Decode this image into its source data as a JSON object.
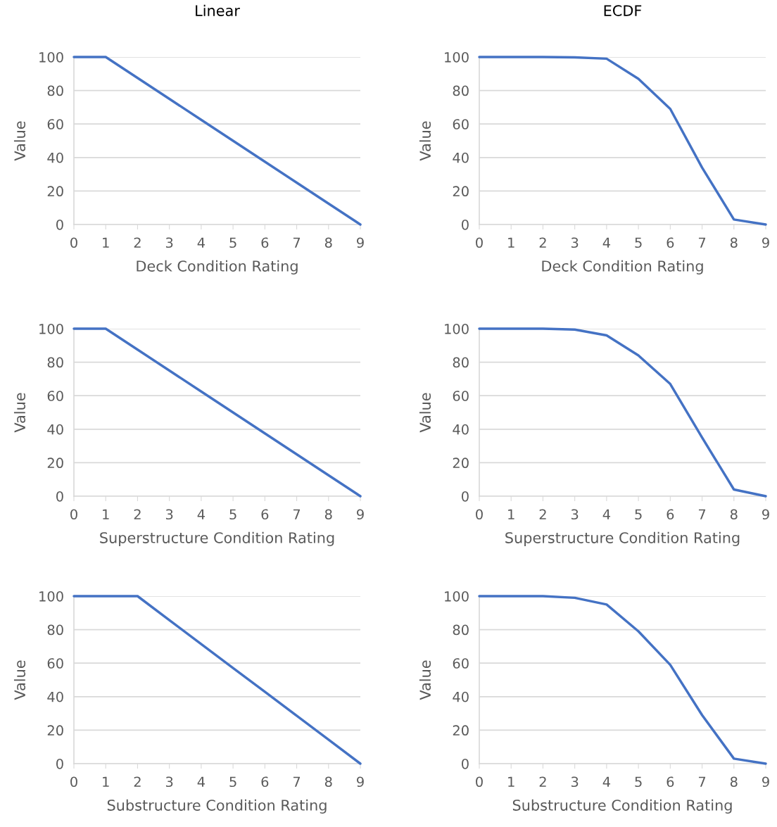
{
  "chart_data": [
    {
      "type": "line",
      "title": "Linear",
      "xlabel": "Deck Condition Rating",
      "ylabel": "Value",
      "x": [
        0,
        1,
        2,
        3,
        4,
        5,
        6,
        7,
        8,
        9
      ],
      "series": [
        {
          "color": "#4472c4",
          "values": [
            100,
            100,
            87.5,
            75,
            62.5,
            50,
            37.5,
            25,
            12.5,
            0
          ]
        }
      ],
      "xlim": [
        0,
        9
      ],
      "ylim": [
        0,
        100
      ],
      "xticks": [
        0,
        1,
        2,
        3,
        4,
        5,
        6,
        7,
        8,
        9
      ],
      "yticks": [
        0,
        20,
        40,
        60,
        80,
        100
      ],
      "grid": "y"
    },
    {
      "type": "line",
      "title": "ECDF",
      "xlabel": "Deck Condition Rating",
      "ylabel": "Value",
      "x": [
        0,
        1,
        2,
        3,
        4,
        5,
        6,
        7,
        8,
        9
      ],
      "series": [
        {
          "color": "#4472c4",
          "values": [
            100,
            100,
            100,
            99.8,
            99,
            87,
            69,
            34,
            3,
            0
          ]
        }
      ],
      "xlim": [
        0,
        9
      ],
      "ylim": [
        0,
        100
      ],
      "xticks": [
        0,
        1,
        2,
        3,
        4,
        5,
        6,
        7,
        8,
        9
      ],
      "yticks": [
        0,
        20,
        40,
        60,
        80,
        100
      ],
      "grid": "y"
    },
    {
      "type": "line",
      "xlabel": "Superstructure Condition Rating",
      "ylabel": "Value",
      "x": [
        0,
        1,
        2,
        3,
        4,
        5,
        6,
        7,
        8,
        9
      ],
      "series": [
        {
          "color": "#4472c4",
          "values": [
            100,
            100,
            87.5,
            75,
            62.5,
            50,
            37.5,
            25,
            12.5,
            0
          ]
        }
      ],
      "xlim": [
        0,
        9
      ],
      "ylim": [
        0,
        100
      ],
      "xticks": [
        0,
        1,
        2,
        3,
        4,
        5,
        6,
        7,
        8,
        9
      ],
      "yticks": [
        0,
        20,
        40,
        60,
        80,
        100
      ],
      "grid": "y"
    },
    {
      "type": "line",
      "xlabel": "Superstructure Condition Rating",
      "ylabel": "Value",
      "x": [
        0,
        1,
        2,
        3,
        4,
        5,
        6,
        7,
        8,
        9
      ],
      "series": [
        {
          "color": "#4472c4",
          "values": [
            100,
            100,
            100,
            99.5,
            96,
            84,
            67,
            35,
            4,
            0
          ]
        }
      ],
      "xlim": [
        0,
        9
      ],
      "ylim": [
        0,
        100
      ],
      "xticks": [
        0,
        1,
        2,
        3,
        4,
        5,
        6,
        7,
        8,
        9
      ],
      "yticks": [
        0,
        20,
        40,
        60,
        80,
        100
      ],
      "grid": "y"
    },
    {
      "type": "line",
      "xlabel": "Substructure Condition Rating",
      "ylabel": "Value",
      "x": [
        0,
        1,
        2,
        3,
        4,
        5,
        6,
        7,
        8,
        9
      ],
      "series": [
        {
          "color": "#4472c4",
          "values": [
            100,
            100,
            100,
            85.7,
            71.4,
            57.1,
            42.9,
            28.6,
            14.3,
            0
          ]
        }
      ],
      "xlim": [
        0,
        9
      ],
      "ylim": [
        0,
        100
      ],
      "xticks": [
        0,
        1,
        2,
        3,
        4,
        5,
        6,
        7,
        8,
        9
      ],
      "yticks": [
        0,
        20,
        40,
        60,
        80,
        100
      ],
      "grid": "y"
    },
    {
      "type": "line",
      "xlabel": "Substructure Condition Rating",
      "ylabel": "Value",
      "x": [
        0,
        1,
        2,
        3,
        4,
        5,
        6,
        7,
        8,
        9
      ],
      "series": [
        {
          "color": "#4472c4",
          "values": [
            100,
            100,
            100,
            99,
            95,
            79,
            59,
            29,
            3,
            0
          ]
        }
      ],
      "xlim": [
        0,
        9
      ],
      "ylim": [
        0,
        100
      ],
      "xticks": [
        0,
        1,
        2,
        3,
        4,
        5,
        6,
        7,
        8,
        9
      ],
      "yticks": [
        0,
        20,
        40,
        60,
        80,
        100
      ],
      "grid": "y"
    }
  ]
}
